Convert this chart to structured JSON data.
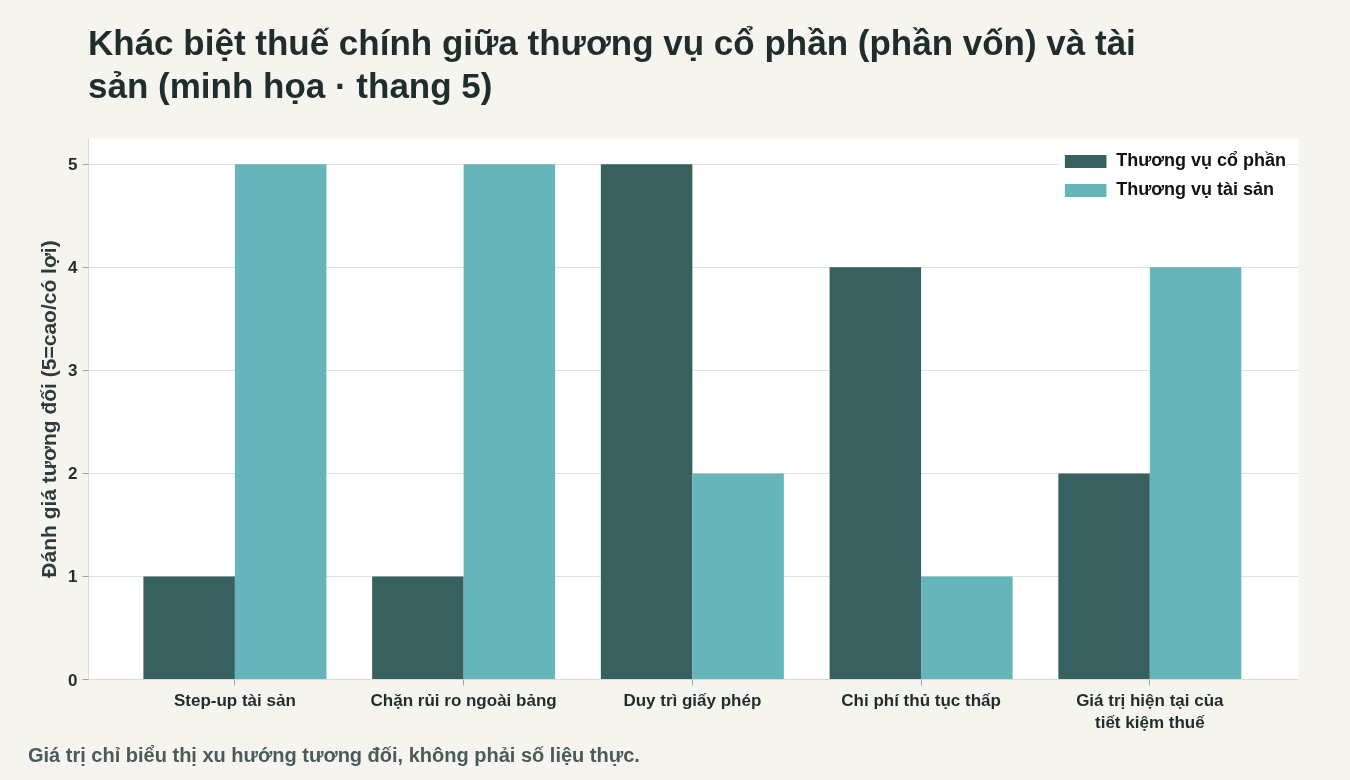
{
  "chart_data": {
    "type": "bar",
    "title": "Khác biệt thuế chính giữa thương vụ cổ phần (phần vốn) và tài sản (minh họa · thang 5)",
    "ylabel": "Đánh giá tương đối (5=cao/có lợi)",
    "categories": [
      "Step-up tài sản",
      "Chặn rủi ro ngoài bảng",
      "Duy trì giấy phép",
      "Chi phí thủ tục thấp",
      "Giá trị hiện tại của tiết kiệm thuế"
    ],
    "series": [
      {
        "name": "Thương vụ cổ phần",
        "color": "#37605f",
        "values": [
          1,
          1,
          5,
          4,
          2
        ]
      },
      {
        "name": "Thương vụ tài sản",
        "color": "#65b5ba",
        "values": [
          5,
          5,
          2,
          1,
          4
        ]
      }
    ],
    "ylim": [
      0,
      5.25
    ],
    "yticks": [
      0,
      1,
      2,
      3,
      4,
      5
    ],
    "grid": "y",
    "legend": "top right",
    "annotations": [
      "Giá trị chỉ biểu thị xu hướng tương đối, không phải số liệu thực."
    ]
  }
}
